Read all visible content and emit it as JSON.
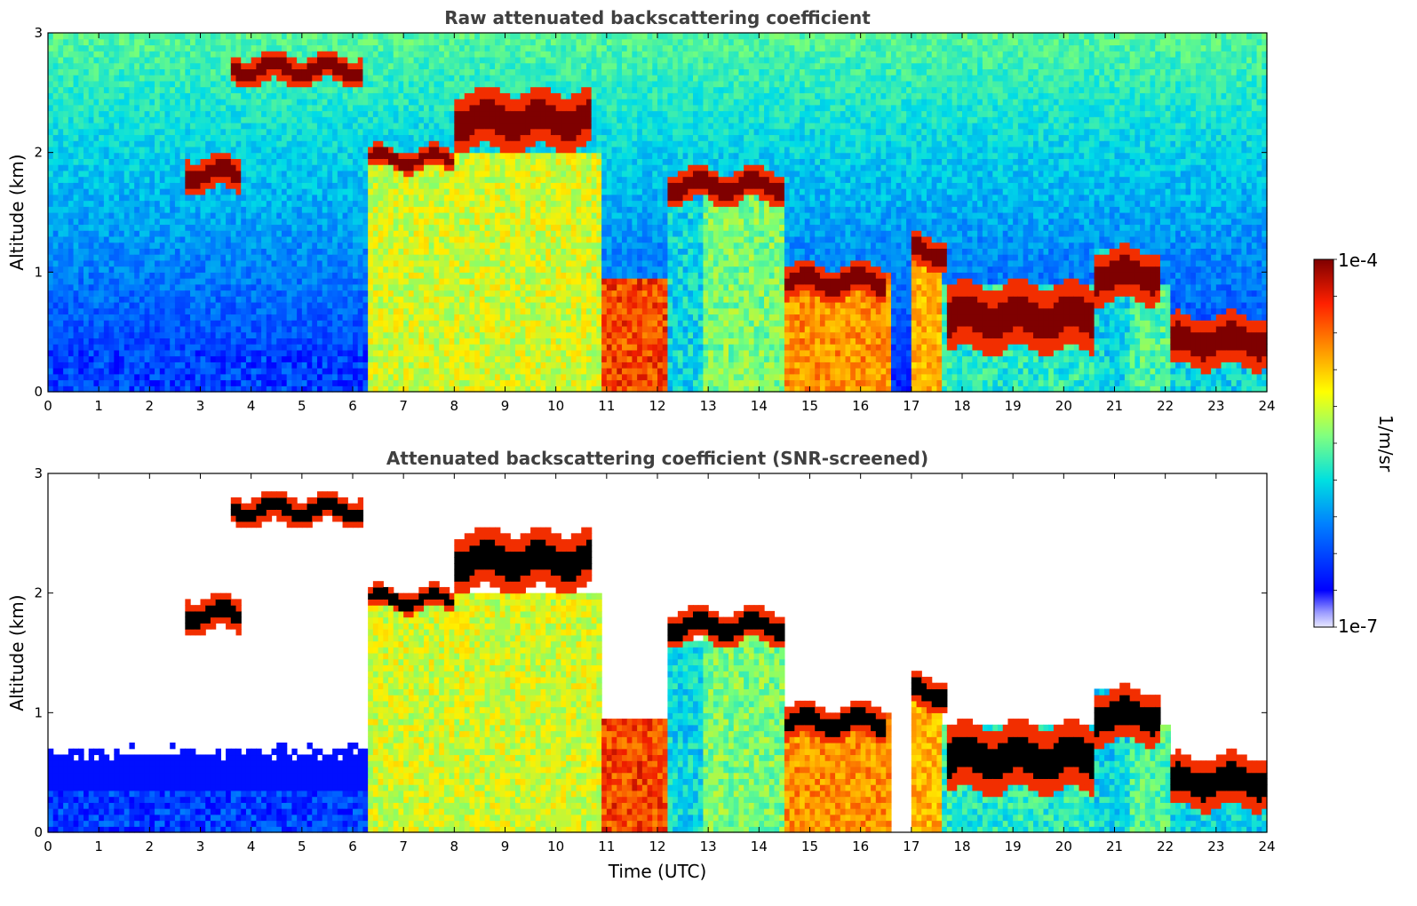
{
  "chart_data": [
    {
      "type": "heatmap",
      "title": "Raw attenuated backscattering coefficient",
      "xlabel": "",
      "ylabel": "Altitude (km)",
      "xlim": [
        0,
        24
      ],
      "ylim": [
        0,
        3
      ],
      "x_ticks": [
        "0",
        "1",
        "2",
        "3",
        "4",
        "5",
        "6",
        "7",
        "8",
        "9",
        "10",
        "11",
        "12",
        "13",
        "14",
        "15",
        "16",
        "17",
        "18",
        "19",
        "20",
        "21",
        "22",
        "23",
        "24"
      ],
      "y_ticks": [
        "0",
        "1",
        "2",
        "3"
      ],
      "screened": false,
      "layers": [
        {
          "start": 6.3,
          "end": 10.9,
          "base_km": 0.0,
          "top_km": 2.0,
          "level": 0.55
        },
        {
          "start": 10.9,
          "end": 12.2,
          "base_km": 0.0,
          "top_km": 0.95,
          "level": 0.85
        },
        {
          "start": 12.2,
          "end": 12.9,
          "base_km": 0.0,
          "top_km": 1.6,
          "level": 0.3
        },
        {
          "start": 12.9,
          "end": 14.5,
          "base_km": 0.0,
          "top_km": 1.8,
          "level": 0.45
        },
        {
          "start": 14.5,
          "end": 16.6,
          "base_km": 0.0,
          "top_km": 1.0,
          "level": 0.75
        },
        {
          "start": 17.0,
          "end": 17.6,
          "base_km": 0.0,
          "top_km": 1.2,
          "level": 0.7
        },
        {
          "start": 17.6,
          "end": 20.6,
          "base_km": 0.0,
          "top_km": 0.9,
          "level": 0.35
        },
        {
          "start": 20.6,
          "end": 21.3,
          "base_km": 0.0,
          "top_km": 1.2,
          "level": 0.3
        },
        {
          "start": 21.3,
          "end": 22.1,
          "base_km": 0.0,
          "top_km": 0.9,
          "level": 0.4
        },
        {
          "start": 22.1,
          "end": 24.0,
          "base_km": 0.0,
          "top_km": 0.5,
          "level": 0.3
        },
        {
          "start": 0.0,
          "end": 6.3,
          "base_km": 0.0,
          "top_km": 0.35,
          "level": 0.08
        }
      ],
      "cloud_layers": [
        {
          "start": 2.7,
          "end": 3.8,
          "base_km": 1.65,
          "top_km": 2.0
        },
        {
          "start": 3.6,
          "end": 6.2,
          "base_km": 2.55,
          "top_km": 2.85
        },
        {
          "start": 6.3,
          "end": 8.0,
          "base_km": 1.85,
          "top_km": 2.05
        },
        {
          "start": 8.0,
          "end": 10.7,
          "base_km": 1.95,
          "top_km": 2.6
        },
        {
          "start": 12.2,
          "end": 14.5,
          "base_km": 1.55,
          "top_km": 1.9
        },
        {
          "start": 14.5,
          "end": 16.5,
          "base_km": 0.75,
          "top_km": 1.1
        },
        {
          "start": 17.0,
          "end": 17.7,
          "base_km": 1.0,
          "top_km": 1.35
        },
        {
          "start": 17.7,
          "end": 20.6,
          "base_km": 0.25,
          "top_km": 1.0
        },
        {
          "start": 20.6,
          "end": 21.9,
          "base_km": 0.7,
          "top_km": 1.25
        },
        {
          "start": 22.1,
          "end": 24.0,
          "base_km": 0.15,
          "top_km": 0.7
        }
      ]
    },
    {
      "type": "heatmap",
      "title": "Attenuated backscattering coefficient (SNR-screened)",
      "xlabel": "Time (UTC)",
      "ylabel": "Altitude (km)",
      "xlim": [
        0,
        24
      ],
      "ylim": [
        0,
        3
      ],
      "x_ticks": [
        "0",
        "1",
        "2",
        "3",
        "4",
        "5",
        "6",
        "7",
        "8",
        "9",
        "10",
        "11",
        "12",
        "13",
        "14",
        "15",
        "16",
        "17",
        "18",
        "19",
        "20",
        "21",
        "22",
        "23",
        "24"
      ],
      "y_ticks": [
        "0",
        "1",
        "2",
        "3"
      ],
      "screened": true
    }
  ],
  "colorbar": {
    "label": "1/m/sr",
    "max_label": "1e-4",
    "min_label": "1e-7",
    "scale": "log",
    "colormap": "jet",
    "low_color": "#e8e8ff",
    "high_color": "#7f0000"
  }
}
